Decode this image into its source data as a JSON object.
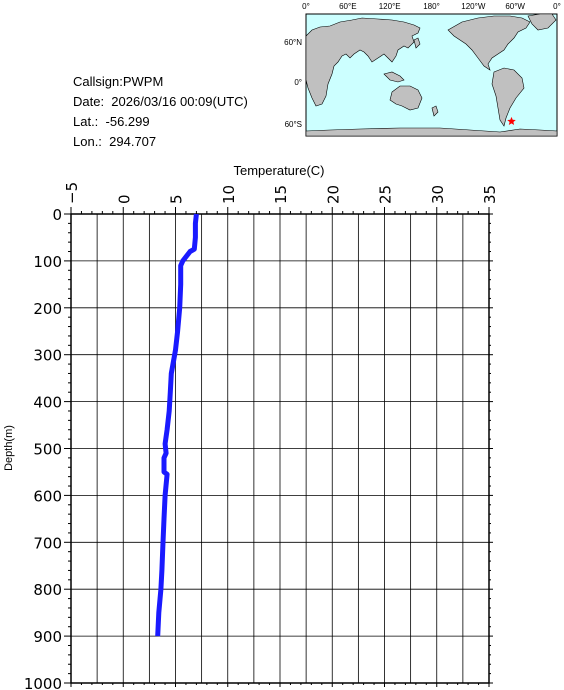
{
  "station": {
    "callsign": "Callsign:PWPM",
    "date": "Date:  2026/03/16 00:09(UTC)",
    "lat": "Lat.:  -56.299",
    "lon": "Lon.:  294.707"
  },
  "map": {
    "top_labels": [
      "0°",
      "60°E",
      "120°E",
      "180°",
      "120°W",
      "60°W",
      "0°"
    ],
    "left_labels": [
      "60°N",
      "0°",
      "60°S"
    ],
    "land_color": "#c0c0c0",
    "ocean_color": "#ccffff",
    "marker_color": "#ff0000",
    "marker_icon": "star-icon",
    "marker_lat": -56.299,
    "marker_lon": 294.707
  },
  "chart_data": {
    "type": "line",
    "xlabel": "Temperature(C)",
    "ylabel": "Depth(m)",
    "xlim": [
      -5,
      35
    ],
    "ylim": [
      0,
      1000
    ],
    "y_inverted": true,
    "x_axis_position": "top",
    "grid": true,
    "x_ticks": [
      -5,
      0,
      5,
      10,
      15,
      20,
      25,
      30,
      35
    ],
    "y_ticks": [
      0,
      100,
      200,
      300,
      400,
      500,
      600,
      700,
      800,
      900,
      1000
    ],
    "line_color": "#1a1aff",
    "series": [
      {
        "x": [
          7.0,
          6.9,
          6.9,
          6.8,
          6.4,
          5.7,
          5.5,
          5.5,
          5.4,
          5.2,
          5.0,
          4.6,
          4.5,
          4.4,
          4.2,
          4.0,
          4.1,
          3.9,
          3.9,
          4.2,
          4.0,
          3.9,
          3.8,
          3.7,
          3.6,
          3.4,
          3.3
        ],
        "y": [
          0,
          20,
          50,
          75,
          80,
          100,
          110,
          150,
          200,
          250,
          290,
          340,
          380,
          420,
          460,
          490,
          510,
          520,
          550,
          555,
          600,
          650,
          700,
          760,
          800,
          850,
          900
        ]
      }
    ]
  }
}
